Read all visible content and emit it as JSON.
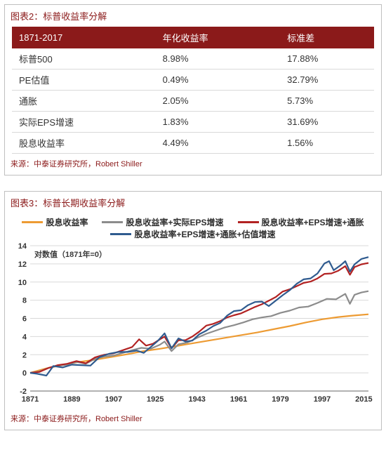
{
  "panel1": {
    "title": "图表2：标普收益率分解",
    "columns": [
      "1871-2017",
      "年化收益率",
      "标准差"
    ],
    "rows": [
      [
        "标普500",
        "8.98%",
        "17.88%"
      ],
      [
        "PE估值",
        "0.49%",
        "32.79%"
      ],
      [
        "通胀",
        "2.05%",
        "5.73%"
      ],
      [
        "实际EPS增速",
        "1.83%",
        "31.69%"
      ],
      [
        "股息收益率",
        "4.49%",
        "1.56%"
      ]
    ],
    "header_bg": "#8b1a1a",
    "header_fg": "#ffffff",
    "row_border": "#d9d9d9",
    "source": "来源：中泰证券研究所，Robert Shiller"
  },
  "panel2": {
    "title": "图表3：标普长期收益率分解",
    "source": "来源：中泰证券研究所，Robert Shiller",
    "chart": {
      "type": "line",
      "note": "对数值（1871年=0）",
      "note_fontsize": 11,
      "background_color": "#ffffff",
      "grid_color": "#d9d9d9",
      "grid_on": true,
      "axis_color": "#666666",
      "tick_fontsize": 11,
      "line_width": 2.2,
      "xlim": [
        1871,
        2017
      ],
      "ylim": [
        -2,
        14
      ],
      "ytick_step": 2,
      "yticks": [
        -2,
        0,
        2,
        4,
        6,
        8,
        10,
        12,
        14
      ],
      "xticks": [
        1871,
        1889,
        1907,
        1925,
        1943,
        1961,
        1979,
        1997,
        2015
      ],
      "legend": [
        {
          "label": "股息收益率",
          "color": "#ed9b33"
        },
        {
          "label": "股息收益率+实际EPS增速",
          "color": "#8c8c8c"
        },
        {
          "label": "股息收益率+EPS增速+通胀",
          "color": "#b22222"
        },
        {
          "label": "股息收益率+EPS增速+通胀+估值增速",
          "color": "#2f5b8f"
        }
      ],
      "series": [
        {
          "name": "divyield",
          "color": "#ed9b33",
          "points": [
            [
              1871,
              0.0
            ],
            [
              1878,
              0.5
            ],
            [
              1885,
              0.85
            ],
            [
              1892,
              1.2
            ],
            [
              1899,
              1.45
            ],
            [
              1906,
              1.75
            ],
            [
              1913,
              2.05
            ],
            [
              1920,
              2.4
            ],
            [
              1927,
              2.65
            ],
            [
              1934,
              2.95
            ],
            [
              1941,
              3.25
            ],
            [
              1948,
              3.55
            ],
            [
              1955,
              3.85
            ],
            [
              1962,
              4.15
            ],
            [
              1969,
              4.45
            ],
            [
              1976,
              4.8
            ],
            [
              1983,
              5.15
            ],
            [
              1990,
              5.55
            ],
            [
              1997,
              5.9
            ],
            [
              2004,
              6.15
            ],
            [
              2010,
              6.3
            ],
            [
              2017,
              6.45
            ]
          ]
        },
        {
          "name": "div+eps",
          "color": "#8c8c8c",
          "points": [
            [
              1871,
              0.0
            ],
            [
              1875,
              0.15
            ],
            [
              1879,
              0.55
            ],
            [
              1883,
              0.8
            ],
            [
              1887,
              0.9
            ],
            [
              1891,
              1.2
            ],
            [
              1895,
              1.0
            ],
            [
              1899,
              1.55
            ],
            [
              1903,
              1.8
            ],
            [
              1907,
              1.9
            ],
            [
              1911,
              2.2
            ],
            [
              1915,
              2.5
            ],
            [
              1919,
              2.75
            ],
            [
              1923,
              2.65
            ],
            [
              1927,
              3.1
            ],
            [
              1929,
              3.45
            ],
            [
              1932,
              2.4
            ],
            [
              1935,
              3.15
            ],
            [
              1939,
              3.35
            ],
            [
              1943,
              3.85
            ],
            [
              1947,
              4.3
            ],
            [
              1951,
              4.65
            ],
            [
              1955,
              5.0
            ],
            [
              1959,
              5.25
            ],
            [
              1963,
              5.55
            ],
            [
              1967,
              5.9
            ],
            [
              1971,
              6.1
            ],
            [
              1975,
              6.25
            ],
            [
              1979,
              6.6
            ],
            [
              1983,
              6.85
            ],
            [
              1987,
              7.2
            ],
            [
              1991,
              7.3
            ],
            [
              1995,
              7.7
            ],
            [
              1999,
              8.15
            ],
            [
              2003,
              8.1
            ],
            [
              2007,
              8.7
            ],
            [
              2009,
              7.6
            ],
            [
              2011,
              8.6
            ],
            [
              2014,
              8.85
            ],
            [
              2017,
              9.0
            ]
          ]
        },
        {
          "name": "div+eps+infl",
          "color": "#b22222",
          "points": [
            [
              1871,
              0.0
            ],
            [
              1875,
              0.1
            ],
            [
              1879,
              0.55
            ],
            [
              1883,
              0.85
            ],
            [
              1887,
              1.0
            ],
            [
              1891,
              1.3
            ],
            [
              1895,
              1.05
            ],
            [
              1899,
              1.7
            ],
            [
              1903,
              2.0
            ],
            [
              1907,
              2.15
            ],
            [
              1911,
              2.5
            ],
            [
              1915,
              2.85
            ],
            [
              1918,
              3.7
            ],
            [
              1921,
              3.0
            ],
            [
              1924,
              3.2
            ],
            [
              1927,
              3.7
            ],
            [
              1929,
              4.0
            ],
            [
              1932,
              2.7
            ],
            [
              1935,
              3.6
            ],
            [
              1938,
              3.6
            ],
            [
              1941,
              4.0
            ],
            [
              1944,
              4.55
            ],
            [
              1947,
              5.2
            ],
            [
              1950,
              5.4
            ],
            [
              1953,
              5.7
            ],
            [
              1956,
              6.1
            ],
            [
              1959,
              6.35
            ],
            [
              1962,
              6.55
            ],
            [
              1965,
              6.9
            ],
            [
              1968,
              7.25
            ],
            [
              1971,
              7.55
            ],
            [
              1974,
              7.95
            ],
            [
              1977,
              8.35
            ],
            [
              1980,
              8.95
            ],
            [
              1983,
              9.2
            ],
            [
              1986,
              9.55
            ],
            [
              1989,
              9.9
            ],
            [
              1992,
              10.05
            ],
            [
              1995,
              10.4
            ],
            [
              1998,
              10.9
            ],
            [
              2001,
              10.95
            ],
            [
              2004,
              11.25
            ],
            [
              2007,
              11.75
            ],
            [
              2009,
              10.8
            ],
            [
              2011,
              11.65
            ],
            [
              2014,
              11.95
            ],
            [
              2017,
              12.1
            ]
          ]
        },
        {
          "name": "div+eps+infl+val",
          "color": "#2f5b8f",
          "points": [
            [
              1871,
              0.0
            ],
            [
              1874,
              -0.1
            ],
            [
              1878,
              -0.3
            ],
            [
              1881,
              0.75
            ],
            [
              1885,
              0.6
            ],
            [
              1889,
              0.9
            ],
            [
              1893,
              0.85
            ],
            [
              1897,
              0.8
            ],
            [
              1901,
              1.75
            ],
            [
              1905,
              2.1
            ],
            [
              1909,
              2.3
            ],
            [
              1913,
              2.3
            ],
            [
              1917,
              2.45
            ],
            [
              1920,
              2.2
            ],
            [
              1923,
              2.85
            ],
            [
              1926,
              3.5
            ],
            [
              1929,
              4.35
            ],
            [
              1932,
              2.7
            ],
            [
              1935,
              3.8
            ],
            [
              1938,
              3.45
            ],
            [
              1941,
              3.55
            ],
            [
              1944,
              4.25
            ],
            [
              1947,
              4.65
            ],
            [
              1950,
              5.15
            ],
            [
              1953,
              5.5
            ],
            [
              1956,
              6.3
            ],
            [
              1959,
              6.8
            ],
            [
              1962,
              6.9
            ],
            [
              1965,
              7.45
            ],
            [
              1968,
              7.8
            ],
            [
              1971,
              7.85
            ],
            [
              1974,
              7.35
            ],
            [
              1977,
              7.95
            ],
            [
              1980,
              8.55
            ],
            [
              1983,
              9.1
            ],
            [
              1986,
              9.8
            ],
            [
              1989,
              10.3
            ],
            [
              1992,
              10.4
            ],
            [
              1995,
              10.95
            ],
            [
              1998,
              12.05
            ],
            [
              2000,
              12.3
            ],
            [
              2002,
              11.3
            ],
            [
              2005,
              11.85
            ],
            [
              2007,
              12.3
            ],
            [
              2009,
              11.15
            ],
            [
              2011,
              11.95
            ],
            [
              2014,
              12.55
            ],
            [
              2017,
              12.75
            ]
          ]
        }
      ]
    }
  }
}
